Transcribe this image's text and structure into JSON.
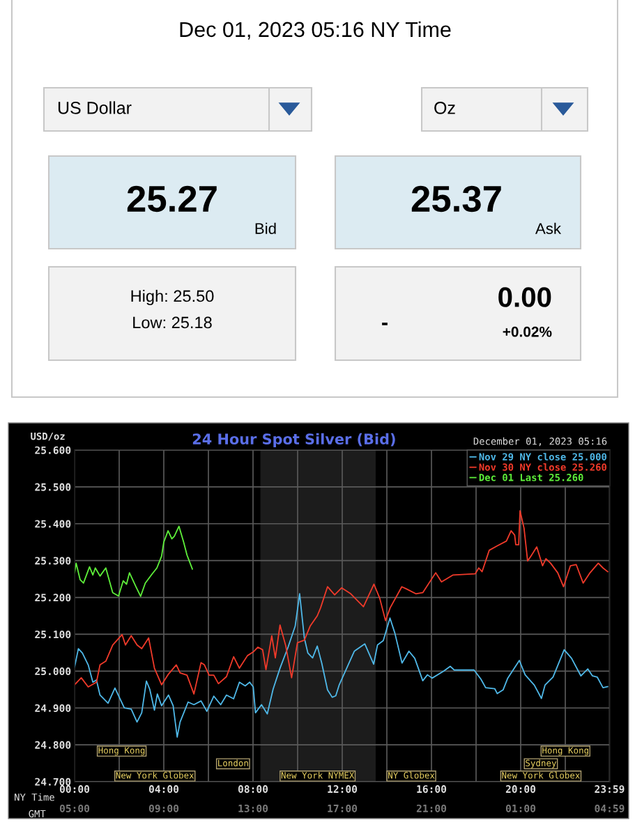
{
  "chart_data": [
    {
      "type": "other",
      "title": "Dec 01, 2023 05:16 NY Time",
      "annotations": [
        "US Dollar",
        "Oz",
        "25.27",
        "Bid",
        "25.37",
        "Ask",
        "High: 25.50",
        "Low: 25.18",
        "-",
        "0.00",
        "+0.02%"
      ]
    },
    {
      "type": "line",
      "title": "24 Hour Spot Silver (Bid)",
      "subtitle": "December 01, 2023 05:16",
      "ylabel": "USD/oz",
      "xlabel": "NY Time",
      "x2label": "GMT",
      "xlim": [
        0,
        24
      ],
      "ylim": [
        24.7,
        25.6
      ],
      "xticks": [
        {
          "value": 0,
          "label": "00:00"
        },
        {
          "value": 2,
          "label": null
        },
        {
          "value": 4,
          "label": "04:00"
        },
        {
          "value": 6,
          "label": null
        },
        {
          "value": 8,
          "label": "08:00"
        },
        {
          "value": 10,
          "label": null
        },
        {
          "value": 12,
          "label": "12:00"
        },
        {
          "value": 14,
          "label": null
        },
        {
          "value": 16,
          "label": "16:00"
        },
        {
          "value": 18,
          "label": null
        },
        {
          "value": 20,
          "label": "20:00"
        },
        {
          "value": 22,
          "label": null
        },
        {
          "value": 23.983,
          "label": "23:59"
        }
      ],
      "x2lim": [
        "2023-12-01T05:00",
        "2023-12-02T05:00"
      ],
      "x2ticks": [
        {
          "value": "2023-12-01T05:00",
          "label": "05:00"
        },
        {
          "value": "2023-12-01T09:00",
          "label": "09:00"
        },
        {
          "value": "2023-12-01T13:00",
          "label": "13:00"
        },
        {
          "value": "2023-12-01T17:00",
          "label": "17:00"
        },
        {
          "value": "2023-12-01T21:00",
          "label": "21:00"
        },
        {
          "value": "2023-12-02T01:00",
          "label": "01:00"
        },
        {
          "value": "2023-12-02T04:59",
          "label": "04:59"
        }
      ],
      "yticks": [
        {
          "value": 24.7,
          "label": "24.700"
        },
        {
          "value": 24.8,
          "label": "24.800"
        },
        {
          "value": 24.9,
          "label": "24.900"
        },
        {
          "value": 25.0,
          "label": "25.000"
        },
        {
          "value": 25.1,
          "label": "25.100"
        },
        {
          "value": 25.2,
          "label": "25.200"
        },
        {
          "value": 25.3,
          "label": "25.300"
        },
        {
          "value": 25.4,
          "label": "25.400"
        },
        {
          "value": 25.5,
          "label": "25.500"
        },
        {
          "value": 25.6,
          "label": "25.600"
        }
      ],
      "grid": true,
      "legend": "top right",
      "marker": "none",
      "line_style": "solid",
      "bands": [
        {
          "axis": "x",
          "from": 8.33,
          "to": 13.5,
          "color": "#1c1c1c"
        }
      ],
      "annotations": [
        "Hong Kong",
        "Hong Kong",
        "London",
        "Sydney",
        "New York Globex",
        "New York NYMEX",
        "NY Globex",
        "New York Globex"
      ],
      "series": [
        {
          "name": "Nov 29 NY close 25.000",
          "color": "#4fb8e8",
          "x": [
            0,
            0.17,
            0.35,
            0.61,
            0.82,
            0.98,
            1.14,
            1.5,
            1.81,
            2.23,
            2.54,
            2.8,
            3.01,
            3.22,
            3.37,
            3.58,
            3.71,
            3.9,
            4.21,
            4.42,
            4.6,
            4.73,
            5.09,
            5.35,
            5.67,
            5.93,
            6.24,
            6.55,
            6.81,
            7.13,
            7.39,
            7.65,
            7.85,
            8.01,
            8.11,
            8.38,
            8.64,
            8.9,
            9.21,
            9.57,
            9.89,
            10.09,
            10.3,
            10.46,
            10.67,
            10.88,
            11.08,
            11.34,
            11.55,
            11.71,
            11.86,
            12.28,
            12.54,
            13.01,
            13.27,
            13.41,
            13.58,
            13.84,
            14.14,
            14.36,
            14.68,
            14.99,
            15.25,
            15.61,
            15.82,
            16.03,
            16.55,
            16.84,
            17.02,
            17.91,
            18.22,
            18.43,
            18.84,
            18.95,
            19.21,
            19.42,
            19.94,
            20.2,
            20.61,
            20.93,
            21.09,
            21.45,
            21.95,
            22.28,
            22.7,
            23.01,
            23.22,
            23.43,
            23.69,
            23.9
          ],
          "values": [
            25.011,
            25.061,
            25.049,
            25.017,
            24.97,
            24.976,
            24.935,
            24.913,
            24.954,
            24.9,
            24.897,
            24.862,
            24.887,
            24.973,
            24.951,
            24.894,
            24.938,
            24.906,
            24.935,
            24.906,
            24.821,
            24.862,
            24.916,
            24.909,
            24.919,
            24.891,
            24.932,
            24.909,
            24.935,
            24.925,
            24.97,
            24.96,
            24.97,
            24.957,
            24.887,
            24.909,
            24.884,
            24.951,
            25.008,
            25.065,
            25.122,
            25.21,
            25.09,
            25.049,
            25.036,
            25.068,
            25.022,
            24.949,
            24.929,
            24.933,
            24.962,
            25.019,
            25.054,
            25.074,
            25.038,
            25.019,
            25.071,
            25.083,
            25.144,
            25.103,
            25.022,
            25.054,
            25.035,
            24.974,
            24.99,
            24.981,
            25.0,
            25.013,
            25.003,
            25.003,
            24.978,
            24.955,
            24.952,
            24.939,
            24.949,
            24.981,
            25.029,
            24.99,
            24.962,
            24.926,
            24.962,
            24.984,
            25.058,
            25.035,
            24.987,
            25.006,
            24.987,
            24.984,
            24.955,
            24.958
          ]
        },
        {
          "name": "Nov 30 NY close 25.260",
          "color": "#f03a2a",
          "x": [
            0,
            0.3,
            0.61,
            0.98,
            1.14,
            1.4,
            1.71,
            2.13,
            2.28,
            2.54,
            2.8,
            3.01,
            3.32,
            3.58,
            3.9,
            4.21,
            4.56,
            4.73,
            5.04,
            5.35,
            5.67,
            5.82,
            6.03,
            6.24,
            6.45,
            6.81,
            7.13,
            7.39,
            7.75,
            8.01,
            8.22,
            8.43,
            8.58,
            8.84,
            9.0,
            9.21,
            9.47,
            9.73,
            9.99,
            10.3,
            10.56,
            10.88,
            11.03,
            11.34,
            11.66,
            11.97,
            12.38,
            12.95,
            13.42,
            13.68,
            13.94,
            14.15,
            14.67,
            14.88,
            15.3,
            15.61,
            16.19,
            16.45,
            16.97,
            17.96,
            18.12,
            18.27,
            18.59,
            18.95,
            19.36,
            19.57,
            19.73,
            19.78,
            19.91,
            19.97,
            20.15,
            20.31,
            20.46,
            20.72,
            20.98,
            21.13,
            21.34,
            21.66,
            21.92,
            22.23,
            22.49,
            22.8,
            23.11,
            23.48,
            23.69,
            23.9
          ],
          "values": [
            24.963,
            24.982,
            24.957,
            24.97,
            25.017,
            25.027,
            25.071,
            25.099,
            25.071,
            25.096,
            25.071,
            25.061,
            25.09,
            25.008,
            24.963,
            24.992,
            25.017,
            24.995,
            24.989,
            24.938,
            25.023,
            25.017,
            24.989,
            24.989,
            24.966,
            24.985,
            25.039,
            25.008,
            25.042,
            25.052,
            25.065,
            25.058,
            25.004,
            25.096,
            25.036,
            25.125,
            25.068,
            24.982,
            25.077,
            25.084,
            25.122,
            25.15,
            25.172,
            25.229,
            25.207,
            25.226,
            25.21,
            25.175,
            25.236,
            25.198,
            25.137,
            25.172,
            25.229,
            25.223,
            25.21,
            25.213,
            25.267,
            25.242,
            25.261,
            25.264,
            25.28,
            25.27,
            25.328,
            25.34,
            25.353,
            25.381,
            25.369,
            25.343,
            25.343,
            25.435,
            25.388,
            25.299,
            25.312,
            25.337,
            25.286,
            25.305,
            25.293,
            25.267,
            25.229,
            25.286,
            25.289,
            25.239,
            25.267,
            25.293,
            25.28,
            25.27
          ]
        },
        {
          "name": "Dec 01 Last 25.260",
          "color": "#5ef03a",
          "x": [
            0,
            0.07,
            0.25,
            0.4,
            0.67,
            0.82,
            0.93,
            1.14,
            1.4,
            1.71,
            1.97,
            2.18,
            2.33,
            2.46,
            2.75,
            2.96,
            3.17,
            3.48,
            3.69,
            3.9,
            4.0,
            4.19,
            4.36,
            4.47,
            4.68,
            4.89,
            5.04,
            5.28
          ],
          "values": [
            25.267,
            25.293,
            25.248,
            25.239,
            25.283,
            25.261,
            25.28,
            25.258,
            25.28,
            25.213,
            25.204,
            25.245,
            25.236,
            25.267,
            25.229,
            25.203,
            25.239,
            25.264,
            25.28,
            25.312,
            25.35,
            25.381,
            25.359,
            25.366,
            25.393,
            25.35,
            25.315,
            25.277
          ]
        }
      ]
    }
  ]
}
